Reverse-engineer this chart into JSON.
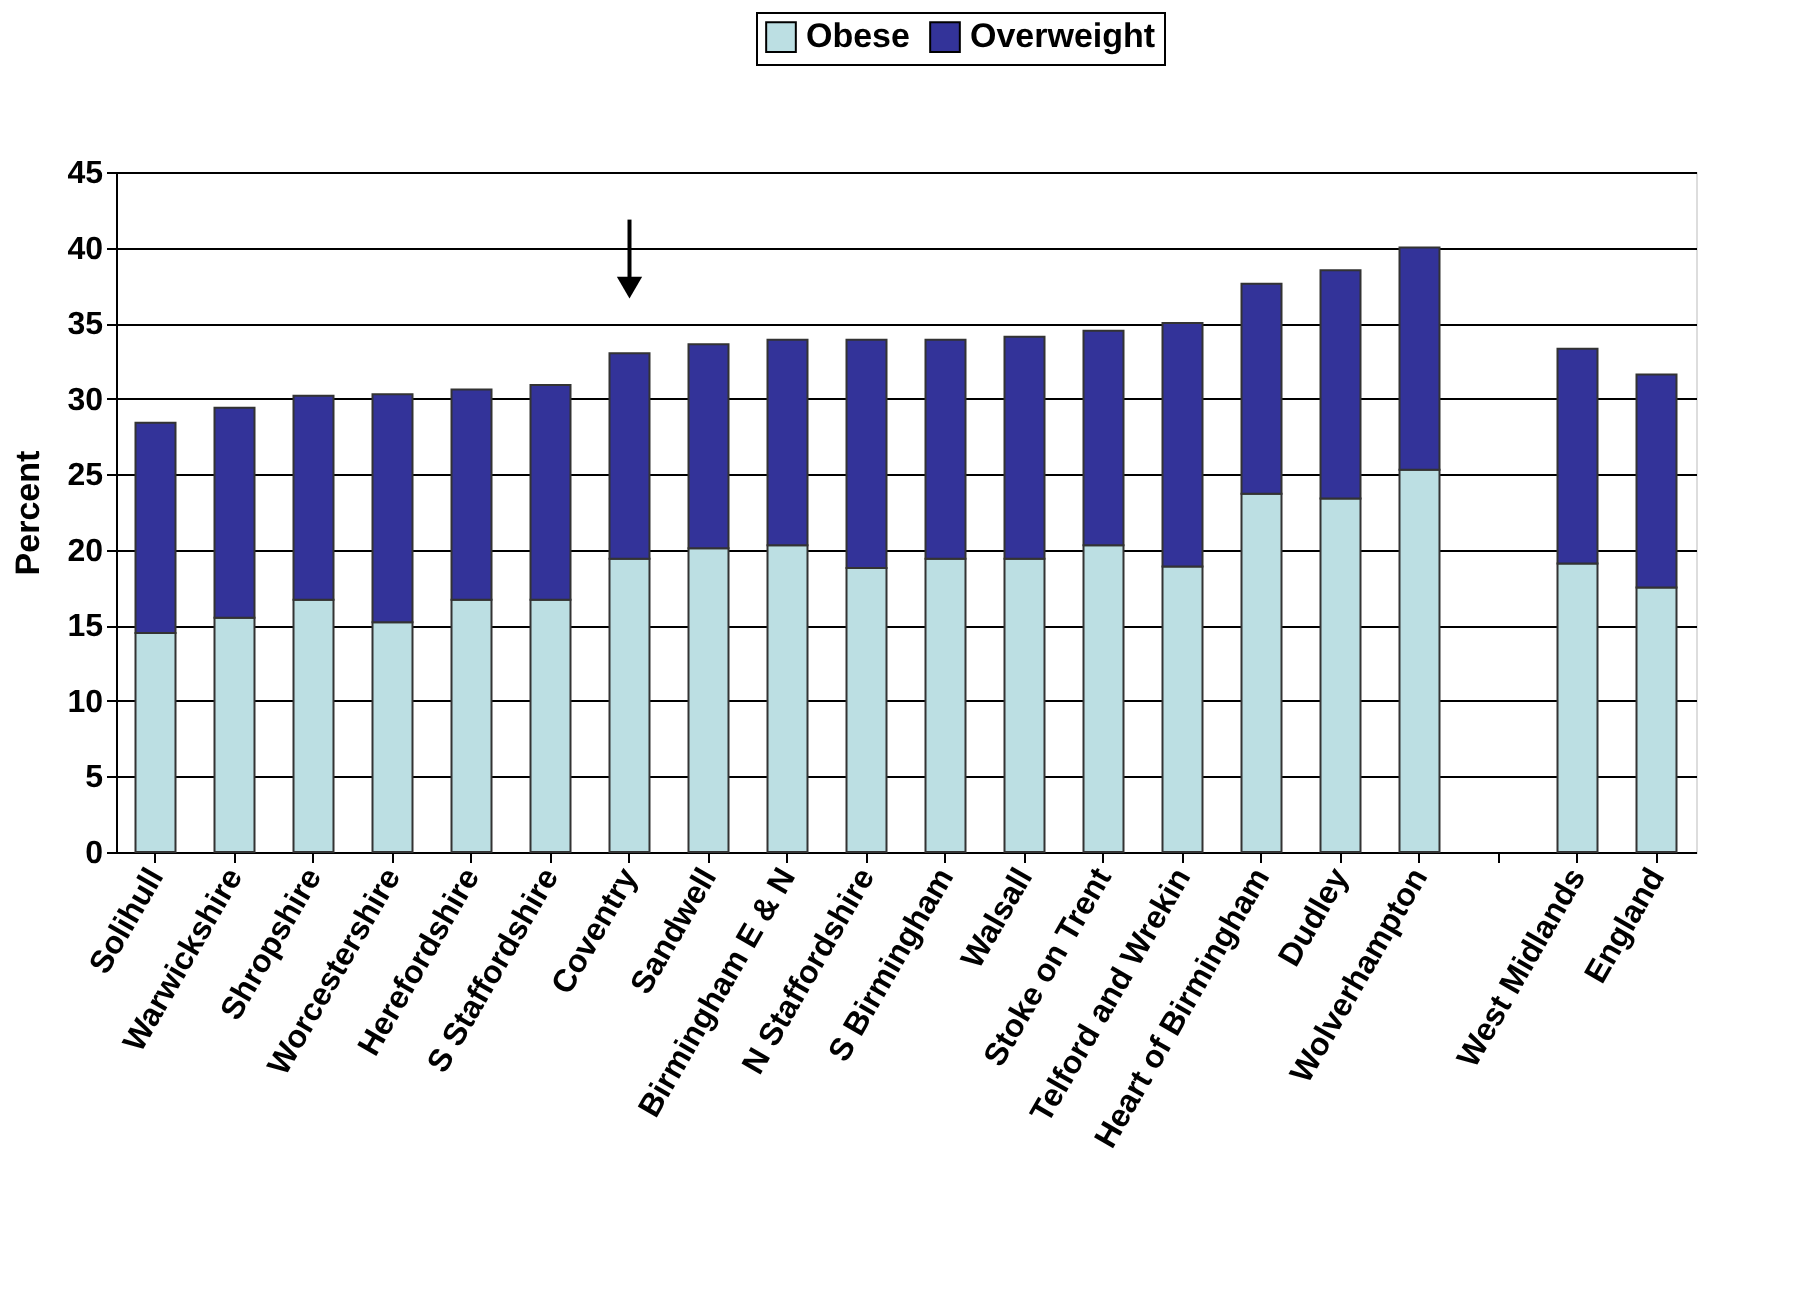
{
  "chart_data": {
    "type": "bar",
    "stacked": true,
    "ylabel": "Percent",
    "categories": [
      "Solihull",
      "Warwickshire",
      "Shropshire",
      "Worcestershire",
      "Herefordshire",
      "S Staffordshire",
      "Coventry",
      "Sandwell",
      "Birmingham E & N",
      "N Staffordshire",
      "S Birmingham",
      "Walsall",
      "Stoke on Trent",
      "Telford and Wrekin",
      "Heart of Birmingham",
      "Dudley",
      "Wolverhampton",
      null,
      "West Midlands",
      "England"
    ],
    "series": [
      {
        "name": "Obese",
        "color": "#bcdfe3",
        "values": [
          14.5,
          15.5,
          16.7,
          15.2,
          16.7,
          16.7,
          19.4,
          20.1,
          20.3,
          18.8,
          19.4,
          19.4,
          20.3,
          18.9,
          23.7,
          23.4,
          25.3,
          null,
          19.1,
          17.5
        ]
      },
      {
        "name": "Overweight",
        "color": "#333399",
        "values": [
          13.9,
          13.9,
          13.5,
          15.1,
          13.9,
          14.2,
          13.6,
          13.5,
          13.6,
          15.1,
          14.5,
          14.7,
          14.2,
          16.1,
          13.9,
          15.1,
          14.7,
          null,
          14.2,
          14.1
        ]
      }
    ],
    "ylim": [
      0,
      45
    ],
    "yticks": [
      0,
      5,
      10,
      15,
      20,
      25,
      30,
      35,
      40,
      45
    ],
    "grid": "y",
    "legend": "top"
  }
}
